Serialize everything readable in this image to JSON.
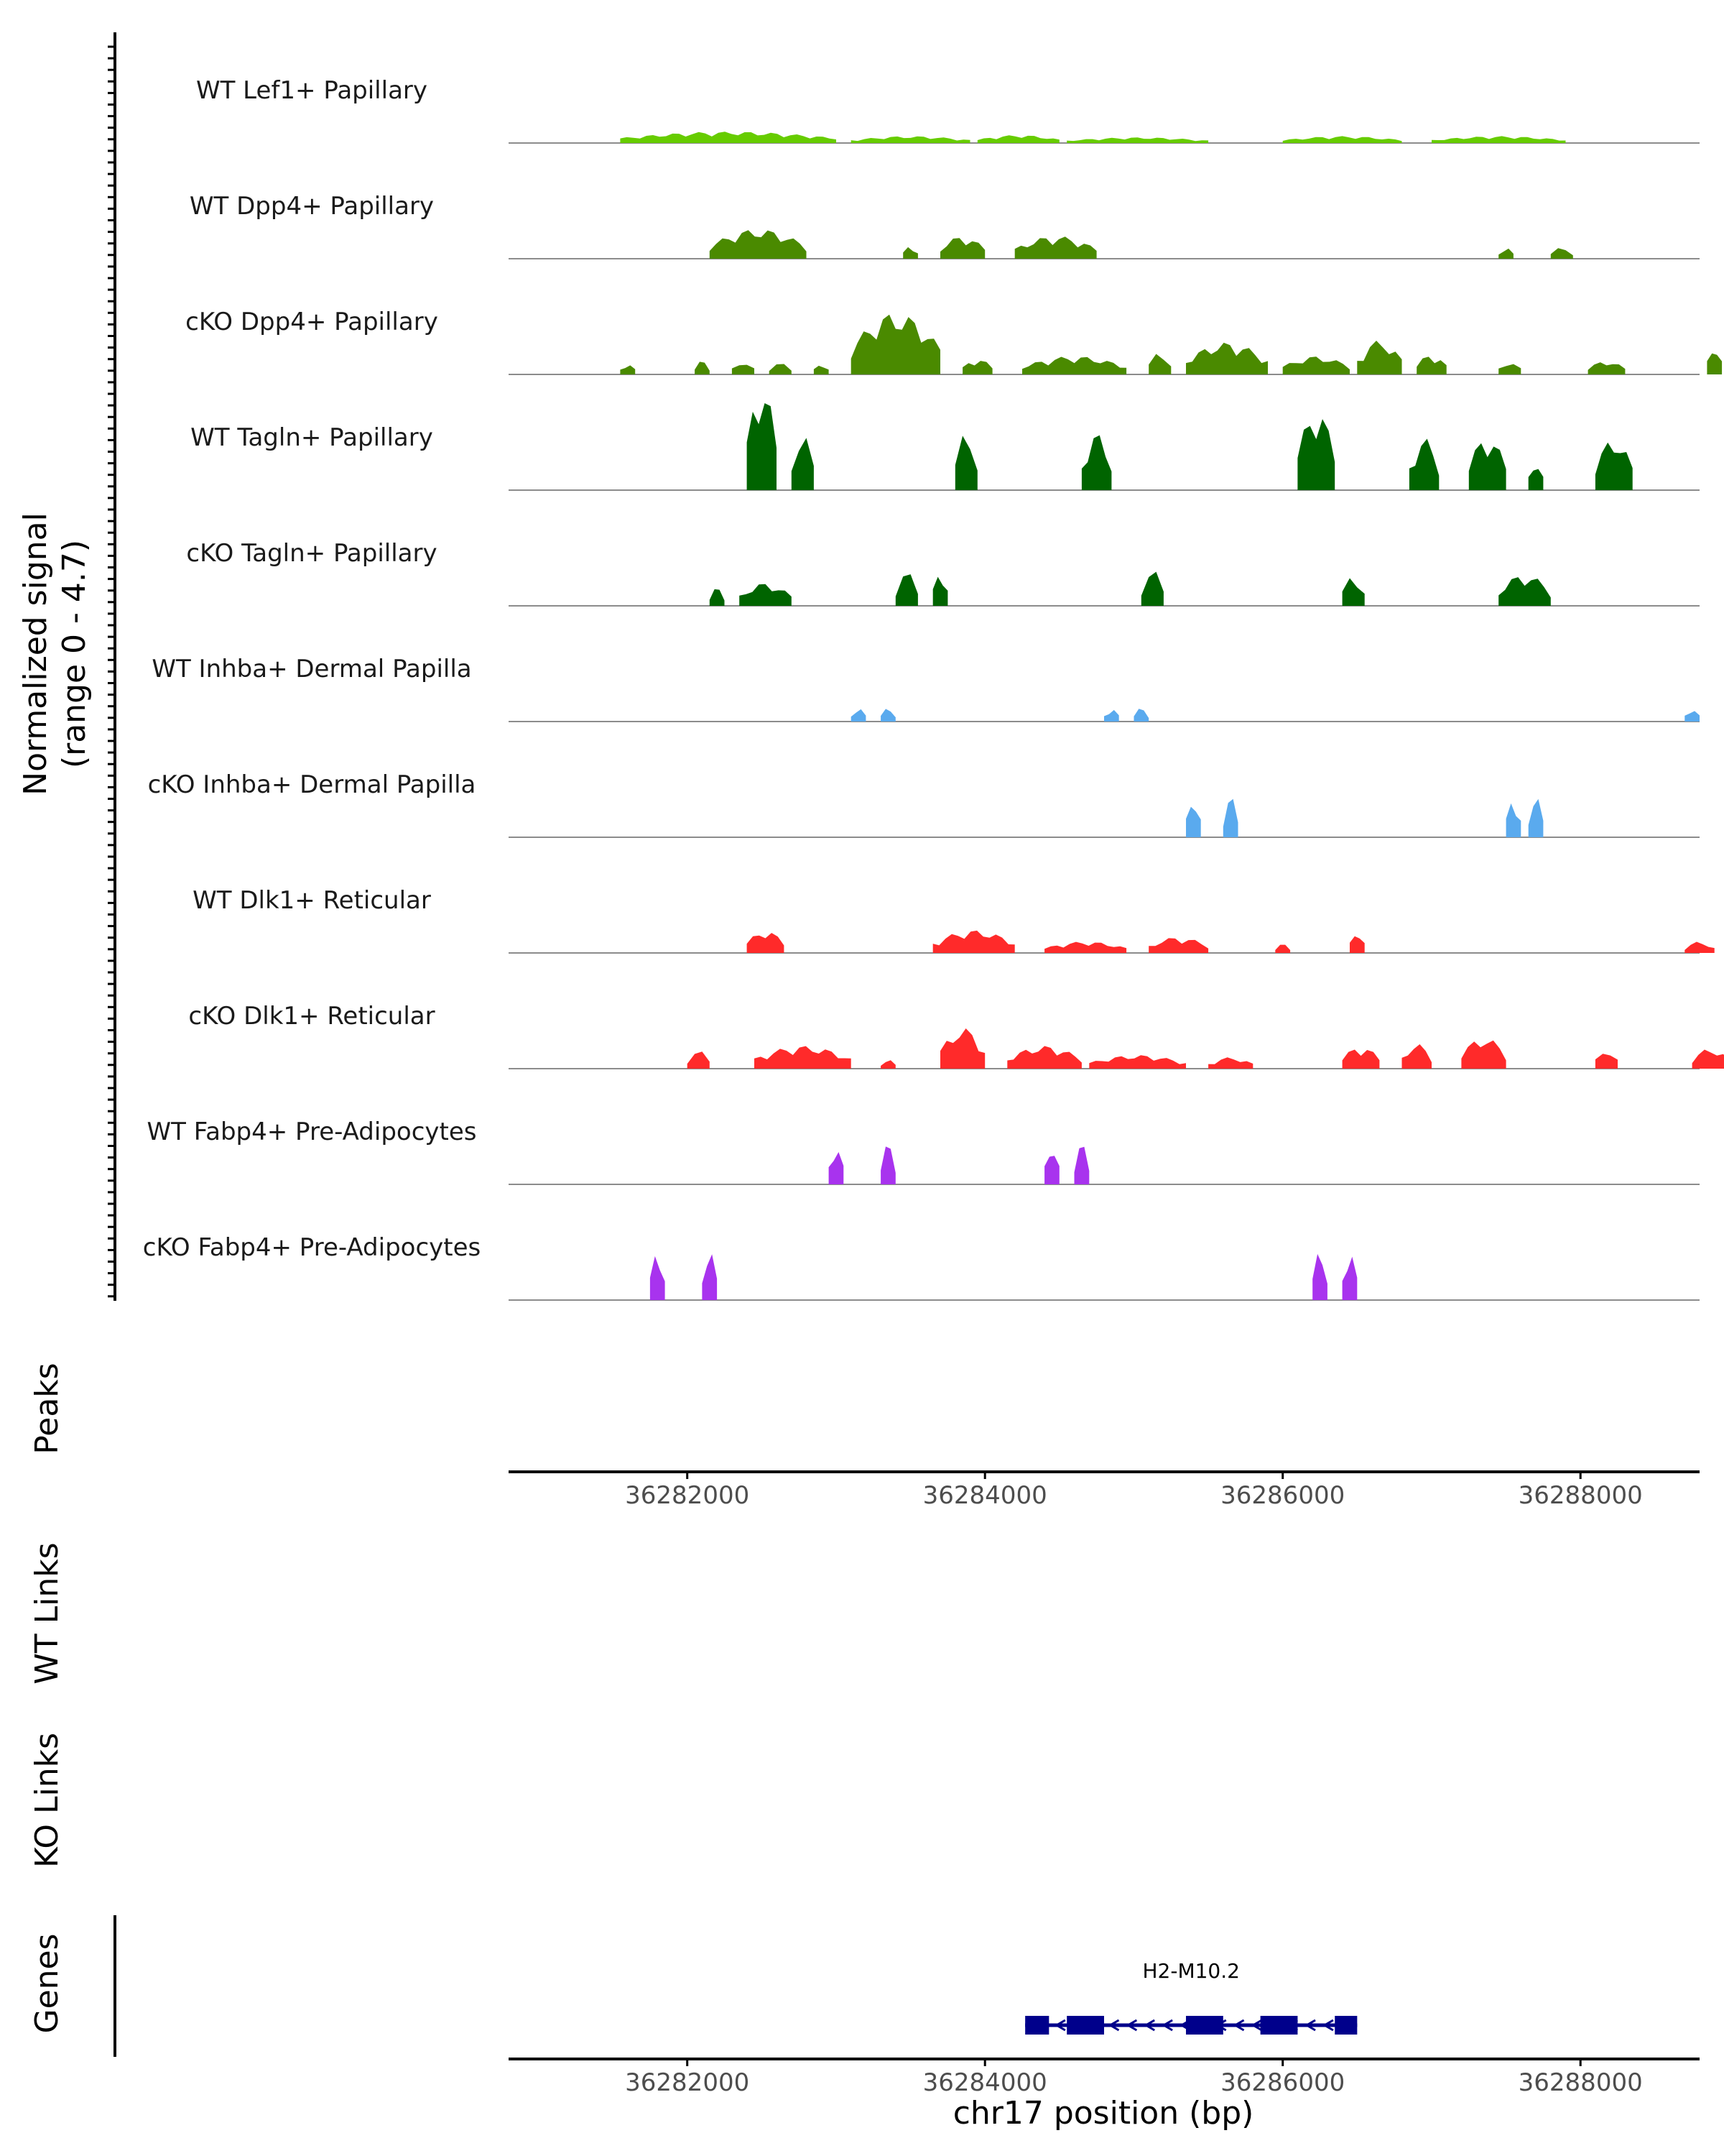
{
  "chart_data": {
    "type": "area",
    "title": "",
    "chromosome": "chr17",
    "xlabel": "chr17 position (bp)",
    "xlim": [
      36280800,
      36288800
    ],
    "xticks": [
      36282000,
      36284000,
      36286000,
      36288000
    ],
    "ylabel_line1": "Normalized signal",
    "ylabel_line2": "(range 0 - 4.7)",
    "ylim": [
      0,
      4.7
    ],
    "panel_labels": {
      "peaks": "Peaks",
      "wt_links": "WT Links",
      "ko_links": "KO Links",
      "genes": "Genes"
    },
    "tracks": [
      {
        "name": "WT Lef1+ Papillary",
        "color": "#66cc00",
        "regions": [
          [
            36281550,
            36283000,
            0.5
          ],
          [
            36283100,
            36283900,
            0.3
          ],
          [
            36283950,
            36284500,
            0.35
          ],
          [
            36284550,
            36285500,
            0.25
          ],
          [
            36286000,
            36286800,
            0.3
          ],
          [
            36287000,
            36287900,
            0.3
          ]
        ]
      },
      {
        "name": "WT Dpp4+ Papillary",
        "color": "#4a8a00",
        "regions": [
          [
            36282150,
            36282800,
            1.3
          ],
          [
            36283450,
            36283550,
            0.6
          ],
          [
            36283700,
            36284000,
            1.0
          ],
          [
            36284200,
            36284750,
            1.0
          ],
          [
            36287450,
            36287550,
            0.5
          ],
          [
            36287800,
            36287950,
            0.5
          ]
        ]
      },
      {
        "name": "cKO Dpp4+ Papillary",
        "color": "#4a8a00",
        "regions": [
          [
            36281550,
            36281650,
            0.5
          ],
          [
            36282050,
            36282150,
            0.6
          ],
          [
            36282300,
            36282450,
            0.6
          ],
          [
            36282550,
            36282700,
            0.5
          ],
          [
            36282850,
            36282950,
            0.5
          ],
          [
            36283100,
            36283700,
            2.7
          ],
          [
            36283850,
            36284050,
            0.7
          ],
          [
            36284250,
            36284950,
            0.8
          ],
          [
            36285100,
            36285250,
            1.0
          ],
          [
            36285350,
            36285900,
            1.4
          ],
          [
            36286000,
            36286450,
            0.8
          ],
          [
            36286500,
            36286800,
            1.5
          ],
          [
            36286900,
            36287100,
            0.9
          ],
          [
            36287450,
            36287600,
            0.6
          ],
          [
            36288050,
            36288300,
            0.6
          ],
          [
            36288850,
            36288950,
            1.3
          ]
        ]
      },
      {
        "name": "WT Tagln+ Papillary",
        "color": "#006400",
        "regions": [
          [
            36282400,
            36282600,
            4.7
          ],
          [
            36282700,
            36282850,
            2.5
          ],
          [
            36283800,
            36283950,
            2.6
          ],
          [
            36284650,
            36284850,
            2.5
          ],
          [
            36286100,
            36286350,
            3.6
          ],
          [
            36286850,
            36287050,
            2.3
          ],
          [
            36287250,
            36287500,
            2.4
          ],
          [
            36287650,
            36287750,
            1.3
          ],
          [
            36288100,
            36288350,
            2.3
          ]
        ]
      },
      {
        "name": "cKO Tagln+ Papillary",
        "color": "#006400",
        "regions": [
          [
            36282150,
            36282250,
            0.8
          ],
          [
            36282350,
            36282700,
            1.0
          ],
          [
            36283400,
            36283550,
            1.5
          ],
          [
            36283650,
            36283750,
            1.6
          ],
          [
            36285050,
            36285200,
            1.6
          ],
          [
            36286400,
            36286550,
            1.4
          ],
          [
            36287450,
            36287800,
            1.4
          ]
        ]
      },
      {
        "name": "WT Inhba+ Dermal Papilla",
        "color": "#5aaaee",
        "regions": [
          [
            36283100,
            36283200,
            0.6
          ],
          [
            36283300,
            36283400,
            0.6
          ],
          [
            36284800,
            36284900,
            0.6
          ],
          [
            36285000,
            36285100,
            0.6
          ],
          [
            36288700,
            36288800,
            0.6
          ]
        ]
      },
      {
        "name": "cKO Inhba+ Dermal Papilla",
        "color": "#5aaaee",
        "regions": [
          [
            36285350,
            36285450,
            1.8
          ],
          [
            36285600,
            36285700,
            1.8
          ],
          [
            36287500,
            36287600,
            1.8
          ],
          [
            36287650,
            36287750,
            1.8
          ]
        ]
      },
      {
        "name": "WT Dlk1+ Reticular",
        "color": "#ff2a2a",
        "regions": [
          [
            36282400,
            36282650,
            1.0
          ],
          [
            36283650,
            36284200,
            1.0
          ],
          [
            36284400,
            36284950,
            0.5
          ],
          [
            36285100,
            36285500,
            0.7
          ],
          [
            36285950,
            36286050,
            0.4
          ],
          [
            36286450,
            36286550,
            1.0
          ],
          [
            36288700,
            36288900,
            0.5
          ]
        ]
      },
      {
        "name": "cKO Dlk1+ Reticular",
        "color": "#ff2a2a",
        "regions": [
          [
            36282000,
            36282150,
            0.8
          ],
          [
            36282450,
            36283100,
            1.0
          ],
          [
            36283300,
            36283400,
            0.4
          ],
          [
            36283700,
            36284000,
            1.8
          ],
          [
            36284150,
            36284650,
            1.0
          ],
          [
            36284700,
            36285350,
            0.6
          ],
          [
            36285500,
            36285800,
            0.5
          ],
          [
            36286400,
            36286650,
            1.0
          ],
          [
            36286800,
            36287000,
            1.1
          ],
          [
            36287200,
            36287500,
            1.4
          ],
          [
            36288100,
            36288250,
            0.9
          ],
          [
            36288750,
            36289000,
            0.9
          ]
        ]
      },
      {
        "name": "WT Fabp4+ Pre-Adipocytes",
        "color": "#a833ee",
        "regions": [
          [
            36282950,
            36283050,
            1.8
          ],
          [
            36283300,
            36283400,
            1.8
          ],
          [
            36284400,
            36284500,
            1.8
          ],
          [
            36284600,
            36284700,
            1.8
          ]
        ]
      },
      {
        "name": "cKO Fabp4+ Pre-Adipocytes",
        "color": "#a833ee",
        "regions": [
          [
            36281750,
            36281850,
            2.2
          ],
          [
            36282100,
            36282200,
            2.2
          ],
          [
            36286200,
            36286300,
            2.2
          ],
          [
            36286400,
            36286500,
            2.2
          ]
        ]
      }
    ],
    "gene": {
      "name": "H2-M10.2",
      "color": "#00008b",
      "start": 36284270,
      "end": 36286500,
      "strand": "-",
      "exons": [
        [
          36284270,
          36284430
        ],
        [
          36284550,
          36284800
        ],
        [
          36285350,
          36285600
        ],
        [
          36285850,
          36286100
        ],
        [
          36286350,
          36286500
        ]
      ]
    }
  }
}
